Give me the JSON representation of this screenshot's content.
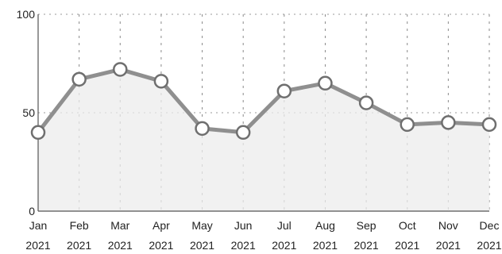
{
  "chart_data": {
    "type": "area",
    "title": "",
    "xlabel": "",
    "ylabel": "",
    "categories": [
      [
        "Jan",
        "2021"
      ],
      [
        "Feb",
        "2021"
      ],
      [
        "Mar",
        "2021"
      ],
      [
        "Apr",
        "2021"
      ],
      [
        "May",
        "2021"
      ],
      [
        "Jun",
        "2021"
      ],
      [
        "Jul",
        "2021"
      ],
      [
        "Aug",
        "2021"
      ],
      [
        "Sep",
        "2021"
      ],
      [
        "Oct",
        "2021"
      ],
      [
        "Nov",
        "2021"
      ],
      [
        "Dec",
        "2021"
      ]
    ],
    "series": [
      {
        "values": [
          40,
          67,
          72,
          66,
          42,
          40,
          61,
          65,
          55,
          44,
          45,
          44
        ]
      }
    ],
    "ylim": [
      0,
      100
    ],
    "yticks": [
      0,
      50,
      100
    ],
    "grid": true,
    "legend": "none",
    "colors": {
      "line": "#8f8f8f",
      "area_fill": "#ececec",
      "point_fill": "#ffffff",
      "point_stroke": "#6f6f6f"
    }
  }
}
